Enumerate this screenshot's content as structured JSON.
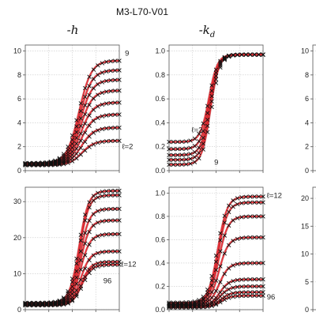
{
  "figure": {
    "title": "M3-L70-V01"
  },
  "colors": {
    "model": "#e8323a",
    "model_edge": "#9b1010",
    "data": "#111111",
    "grid": "#c8c8c8",
    "frame": "#555555"
  },
  "chart_data": [
    {
      "id": "h-top",
      "type": "line",
      "title": "-h",
      "xlim": [
        0,
        1
      ],
      "ylim": [
        0,
        10.5
      ],
      "yticks": [
        "0",
        "2",
        "4",
        "6",
        "8",
        "10"
      ],
      "ytick_values": [
        0,
        2,
        4,
        6,
        8,
        10
      ],
      "curve": {
        "x0": 0.6,
        "width": 0.065,
        "direction": "up"
      },
      "series": [
        {
          "low": 0.45,
          "high": 2.5
        },
        {
          "low": 0.48,
          "high": 3.6
        },
        {
          "low": 0.5,
          "high": 4.7
        },
        {
          "low": 0.52,
          "high": 5.7
        },
        {
          "low": 0.55,
          "high": 6.7
        },
        {
          "low": 0.57,
          "high": 7.6
        },
        {
          "low": 0.6,
          "high": 8.4
        },
        {
          "low": 0.63,
          "high": 9.2
        }
      ],
      "annotations": [
        {
          "text": "9",
          "x": 1.06,
          "y": 9.8
        },
        {
          "text": "ℓ=2",
          "x": 1.03,
          "y": 2.0
        }
      ]
    },
    {
      "id": "kd-top",
      "type": "line",
      "title": "-k",
      "title_sub": "d",
      "xlim": [
        0,
        1
      ],
      "ylim": [
        0,
        1.05
      ],
      "yticks": [
        "0.0",
        "0.2",
        "0.4",
        "0.6",
        "0.8",
        "1.0"
      ],
      "ytick_values": [
        0,
        0.2,
        0.4,
        0.6,
        0.8,
        1.0
      ],
      "curve": {
        "x0": 0.44,
        "width": 0.045,
        "direction": "up"
      },
      "series": [
        {
          "low": 0.05,
          "high": 0.97
        },
        {
          "low": 0.09,
          "high": 0.97
        },
        {
          "low": 0.13,
          "high": 0.97
        },
        {
          "low": 0.18,
          "high": 0.97
        },
        {
          "low": 0.24,
          "high": 0.97
        }
      ],
      "annotations": [
        {
          "text": "ℓ=2",
          "x": 0.24,
          "y": 0.34
        },
        {
          "text": "9",
          "x": 0.48,
          "y": 0.07
        }
      ]
    },
    {
      "id": "h-bottom",
      "type": "line",
      "title": "",
      "xlim": [
        0,
        1
      ],
      "ylim": [
        0,
        34
      ],
      "yticks": [
        "0",
        "10",
        "20",
        "30"
      ],
      "ytick_values": [
        0,
        10,
        20,
        30
      ],
      "curve": {
        "x0": 0.6,
        "width": 0.05,
        "direction": "up"
      },
      "series": [
        {
          "low": 1.2,
          "high": 12.5
        },
        {
          "low": 1.3,
          "high": 13.3
        },
        {
          "low": 1.4,
          "high": 16.2
        },
        {
          "low": 1.5,
          "high": 21.0
        },
        {
          "low": 1.6,
          "high": 24.8
        },
        {
          "low": 1.7,
          "high": 28.0
        },
        {
          "low": 1.8,
          "high": 31.8
        },
        {
          "low": 1.9,
          "high": 33.0
        }
      ],
      "annotations": [
        {
          "text": "ℓ=12",
          "x": 1.02,
          "y": 12.6
        },
        {
          "text": "96",
          "x": 0.83,
          "y": 8.0
        }
      ]
    },
    {
      "id": "kd-bottom",
      "type": "line",
      "title": "",
      "xlim": [
        0,
        1
      ],
      "ylim": [
        0,
        1.05
      ],
      "yticks": [
        "0.0",
        "0.2",
        "0.4",
        "0.6",
        "0.8",
        "1.0"
      ],
      "ytick_values": [
        0,
        0.2,
        0.4,
        0.6,
        0.8,
        1.0
      ],
      "curve": {
        "x0": 0.55,
        "width": 0.05,
        "direction": "up"
      },
      "series": [
        {
          "low": 0.02,
          "high": 0.12
        },
        {
          "low": 0.02,
          "high": 0.15
        },
        {
          "low": 0.03,
          "high": 0.2
        },
        {
          "low": 0.03,
          "high": 0.26
        },
        {
          "low": 0.04,
          "high": 0.4
        },
        {
          "low": 0.04,
          "high": 0.62
        },
        {
          "low": 0.05,
          "high": 0.8
        },
        {
          "low": 0.05,
          "high": 0.92
        },
        {
          "low": 0.06,
          "high": 0.97
        }
      ],
      "annotations": [
        {
          "text": "ℓ=12",
          "x": 1.04,
          "y": 0.98
        },
        {
          "text": "96",
          "x": 1.04,
          "y": 0.11
        }
      ]
    },
    {
      "id": "third-top-partial",
      "type": "line",
      "title": "",
      "xlim": [
        0,
        1
      ],
      "ylim": [
        0,
        10.5
      ],
      "yticks": [
        "0",
        "2",
        "4",
        "6",
        "8",
        "10"
      ],
      "ytick_values": [
        0,
        2,
        4,
        6,
        8,
        10
      ],
      "series": [],
      "annotations": []
    },
    {
      "id": "third-bottom-partial",
      "type": "line",
      "title": "",
      "xlim": [
        0,
        1
      ],
      "ylim": [
        0,
        22
      ],
      "yticks": [
        "0",
        "5",
        "10",
        "15",
        "20"
      ],
      "ytick_values": [
        0,
        5,
        10,
        15,
        20
      ],
      "series": [],
      "annotations": []
    }
  ]
}
